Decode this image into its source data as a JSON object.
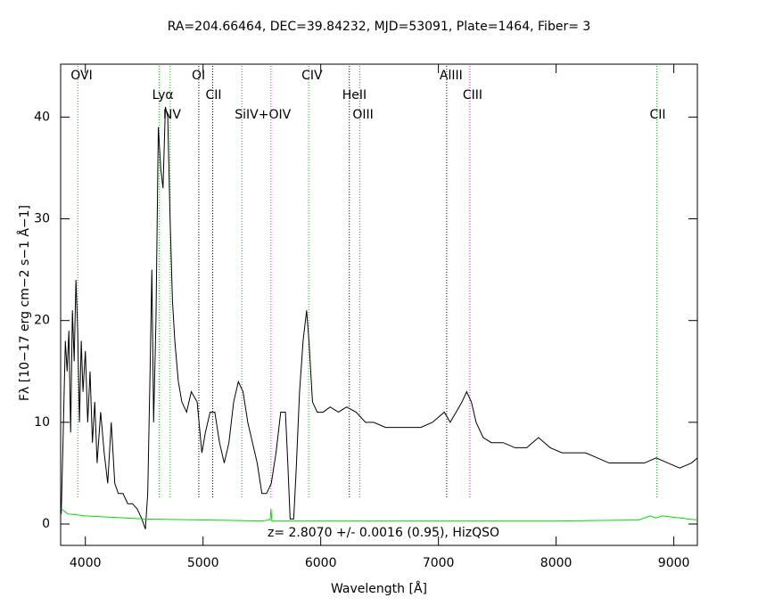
{
  "chart_data": {
    "type": "line",
    "title": "RA=204.66464, DEC=39.84232, MJD=53091, Plate=1464, Fiber=  3",
    "xlabel": "Wavelength [Å]",
    "ylabel": "Fλ [10−17 erg cm−2 s−1 Å−1]",
    "annotation": "z= 2.8070 +/- 0.0016 (0.95), HizQSO",
    "xlim": [
      3790,
      9200
    ],
    "ylim": [
      -2.1,
      45.2
    ],
    "xticks": [
      4000,
      5000,
      6000,
      7000,
      8000,
      9000
    ],
    "yticks": [
      0,
      10,
      20,
      30,
      40
    ],
    "series": [
      {
        "color": "#000000",
        "x": [
          3795,
          3810,
          3830,
          3845,
          3860,
          3875,
          3890,
          3905,
          3920,
          3935,
          3950,
          3965,
          3980,
          4000,
          4020,
          4040,
          4060,
          4080,
          4100,
          4130,
          4160,
          4190,
          4220,
          4250,
          4280,
          4320,
          4360,
          4400,
          4440,
          4480,
          4510,
          4530,
          4550,
          4565,
          4580,
          4600,
          4620,
          4640,
          4660,
          4680,
          4700,
          4720,
          4740,
          4760,
          4790,
          4820,
          4860,
          4900,
          4950,
          4990,
          5020,
          5060,
          5100,
          5140,
          5180,
          5220,
          5260,
          5300,
          5340,
          5380,
          5420,
          5460,
          5500,
          5540,
          5580,
          5620,
          5660,
          5700,
          5720,
          5740,
          5770,
          5790,
          5820,
          5850,
          5880,
          5900,
          5930,
          5970,
          6020,
          6080,
          6150,
          6220,
          6300,
          6380,
          6450,
          6550,
          6650,
          6750,
          6850,
          6950,
          7000,
          7050,
          7100,
          7150,
          7200,
          7240,
          7280,
          7320,
          7380,
          7450,
          7550,
          7650,
          7750,
          7850,
          7950,
          8050,
          8150,
          8250,
          8350,
          8450,
          8550,
          8650,
          8750,
          8850,
          8950,
          9050,
          9150,
          9200
        ],
        "values": [
          1,
          8,
          18,
          15,
          19,
          9,
          21,
          16,
          24,
          19,
          10,
          18,
          13,
          17,
          10,
          15,
          8,
          12,
          6,
          11,
          7,
          4,
          10,
          4,
          3,
          3,
          2,
          2,
          1.5,
          0.5,
          -0.5,
          3,
          15,
          25,
          10,
          20,
          39,
          35,
          33,
          41,
          40,
          30,
          22,
          18,
          14,
          12,
          11,
          13,
          12,
          7,
          9,
          11,
          11,
          8,
          6,
          8,
          12,
          14,
          13,
          10,
          8,
          6,
          3,
          3,
          4,
          7,
          11,
          11,
          6,
          0.5,
          0.5,
          5,
          13,
          18,
          21,
          18,
          12,
          11,
          11,
          11.5,
          11,
          11.5,
          11,
          10,
          10,
          9.5,
          9.5,
          9.5,
          9.5,
          10,
          10.5,
          11,
          10,
          11,
          12,
          13,
          12,
          10,
          8.5,
          8,
          8,
          7.5,
          7.5,
          8.5,
          7.5,
          7,
          7,
          7,
          6.5,
          6,
          6,
          6,
          6,
          6.5,
          6,
          5.5,
          6,
          6.5
        ]
      },
      {
        "color": "#00e000",
        "x": [
          3795,
          3850,
          4000,
          4500,
          5000,
          5500,
          5570,
          5577,
          5585,
          6000,
          7000,
          8000,
          8700,
          8800,
          8850,
          8900,
          9200
        ],
        "values": [
          1.5,
          1,
          0.8,
          0.5,
          0.4,
          0.3,
          0.4,
          1.5,
          0.3,
          0.3,
          0.3,
          0.3,
          0.4,
          0.8,
          0.6,
          0.8,
          0.4
        ]
      }
    ],
    "lines": [
      {
        "label": "OVI",
        "wavelength": 3936,
        "color": "#00c000"
      },
      {
        "label": "Lyα",
        "wavelength": 4628,
        "color": "#00c000"
      },
      {
        "label": "NV",
        "wavelength": 4721,
        "color": "#00c000"
      },
      {
        "label": "OI",
        "wavelength": 4964,
        "color": "#000000"
      },
      {
        "label": "CII",
        "wavelength": 5082,
        "color": "#000000"
      },
      {
        "label": "SiIV+OIV",
        "wavelength": 5330,
        "color": "#00c000"
      },
      {
        "label": "CIV",
        "wavelength": 5897,
        "color": "#00c000"
      },
      {
        "label": "HeII",
        "wavelength": 6243,
        "color": "#000000"
      },
      {
        "label": "OIII",
        "wavelength": 6331,
        "color": "#ff00ff"
      },
      {
        "label": "AlIII",
        "wavelength": 7070,
        "color": "#000000"
      },
      {
        "label": "CIII",
        "wavelength": 7267,
        "color": "#ff00ff"
      },
      {
        "label": "CII",
        "wavelength": 8855,
        "color": "#00c000"
      },
      {
        "label": null,
        "wavelength": 5577,
        "color": "#ff00ff"
      }
    ]
  }
}
